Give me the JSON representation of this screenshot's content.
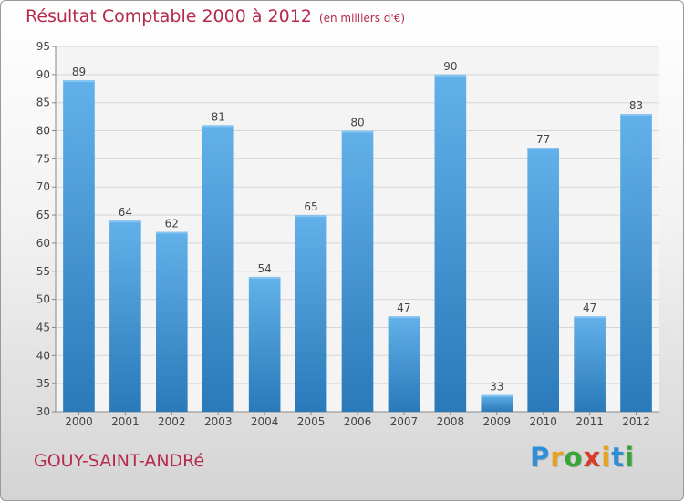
{
  "title": "Résultat Comptable 2000 à 2012",
  "unit_note": "(en milliers d'€)",
  "commune": "GOUY-SAINT-ANDRé",
  "logo": {
    "letters": [
      "P",
      "r",
      "o",
      "x",
      "i",
      "t",
      "i"
    ],
    "colors": [
      "#2f8fd6",
      "#e8a21a",
      "#3aa43a",
      "#d93b2a",
      "#e8a21a",
      "#2f8fd6",
      "#3aa43a"
    ]
  },
  "colors": {
    "bar_top": "#62b1ea",
    "bar_bottom": "#2a79b9",
    "title": "#b5294b"
  },
  "chart_data": {
    "type": "bar",
    "categories": [
      "2000",
      "2001",
      "2002",
      "2003",
      "2004",
      "2005",
      "2006",
      "2007",
      "2008",
      "2009",
      "2010",
      "2011",
      "2012"
    ],
    "values": [
      89,
      64,
      62,
      81,
      54,
      65,
      80,
      47,
      90,
      33,
      77,
      47,
      83
    ],
    "ylim": [
      30,
      95
    ],
    "yticks": [
      30,
      35,
      40,
      45,
      50,
      55,
      60,
      65,
      70,
      75,
      80,
      85,
      90,
      95
    ],
    "grid": true,
    "data_labels": true,
    "xlabel": "",
    "ylabel": ""
  }
}
